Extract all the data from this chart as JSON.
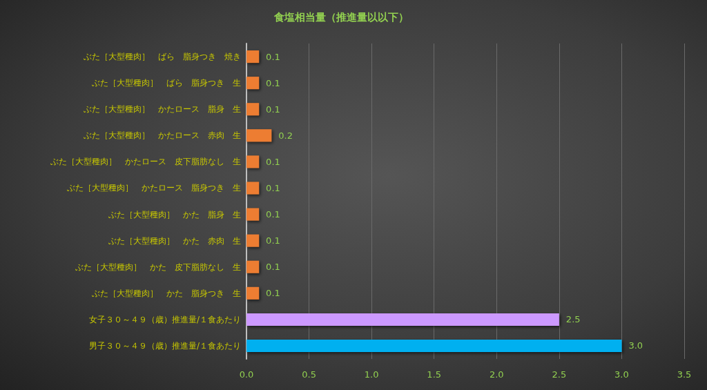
{
  "chart_data": {
    "type": "bar",
    "orientation": "horizontal",
    "title": "食塩相当量（推進量以以下）",
    "categories": [
      "ぶた［大型種肉］　ばら　脂身つき　焼き",
      "ぶた［大型種肉］　ばら　脂身つき　生",
      "ぶた［大型種肉］　かたロース　脂身　生",
      "ぶた［大型種肉］　かたロース　赤肉　生",
      "ぶた［大型種肉］　かたロース　皮下脂肪なし　生",
      "ぶた［大型種肉］　かたロース　脂身つき　生",
      "ぶた［大型種肉］　かた　脂身　生",
      "ぶた［大型種肉］　かた　赤肉　生",
      "ぶた［大型種肉］　かた　皮下脂肪なし　生",
      "ぶた［大型種肉］　かた　脂身つき　生",
      "女子３０～４９（歳）推進量/１食あたり",
      "男子３０～４９（歳）推進量/１食あたり"
    ],
    "values": [
      0.1,
      0.1,
      0.1,
      0.2,
      0.1,
      0.1,
      0.1,
      0.1,
      0.1,
      0.1,
      2.5,
      3.0
    ],
    "value_labels": [
      "0.1",
      "0.1",
      "0.1",
      "0.2",
      "0.1",
      "0.1",
      "0.1",
      "0.1",
      "0.1",
      "0.1",
      "2.5",
      "3.0"
    ],
    "colors": [
      "#ed7d31",
      "#ed7d31",
      "#ed7d31",
      "#ed7d31",
      "#ed7d31",
      "#ed7d31",
      "#ed7d31",
      "#ed7d31",
      "#ed7d31",
      "#ed7d31",
      "#cc99ff",
      "#00b0f0"
    ],
    "xlim": [
      0,
      3.5
    ],
    "xticks": [
      {
        "value": 0,
        "label": "0.0"
      },
      0.5,
      {
        "value": 1,
        "label": "1.0"
      },
      1.5,
      {
        "value": 2,
        "label": "2.0"
      },
      2.5,
      {
        "value": 3,
        "label": "3.0"
      },
      3.5
    ],
    "grid": "x"
  }
}
